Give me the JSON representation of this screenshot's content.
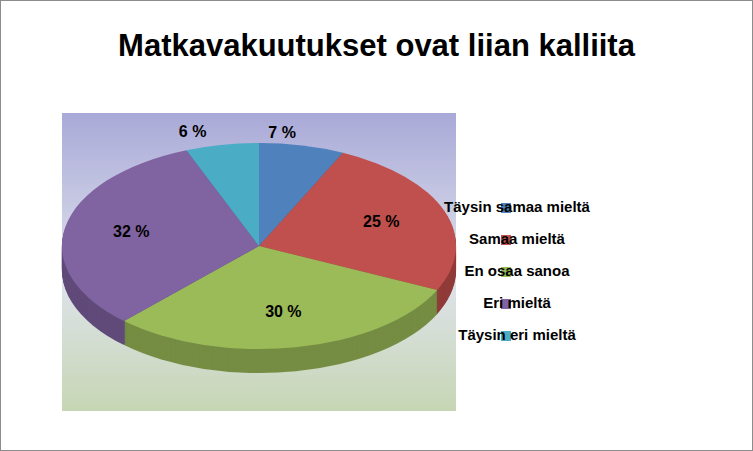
{
  "chart_data": {
    "type": "pie",
    "title": "Matkavakuutukset ovat liian kalliita",
    "categories": [
      "Täysin samaa mieltä",
      "Samaa mieltä",
      "En osaa sanoa",
      "Eri mieltä",
      "Täysin eri mieltä"
    ],
    "values": [
      7,
      25,
      30,
      32,
      6
    ],
    "value_labels": [
      "7 %",
      "25 %",
      "30 %",
      "32 %",
      "6 %"
    ],
    "colors": [
      "#4f81bd",
      "#c0504d",
      "#9bbb59",
      "#8064a2",
      "#4bacc6"
    ],
    "data_labels": true,
    "legend": "right"
  }
}
